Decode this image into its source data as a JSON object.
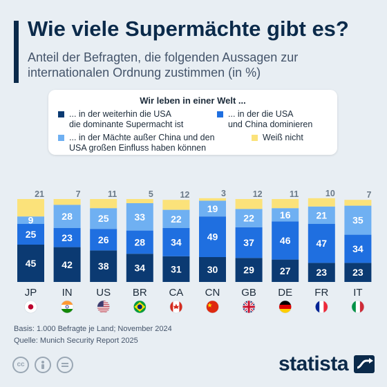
{
  "header": {
    "title": "Wie viele Supermächte gibt es?",
    "subtitle": "Anteil der Befragten, die folgenden Aussagen zur internationalen Ordnung zustimmen (in %)"
  },
  "legend": {
    "title": "Wir leben in einer Welt ...",
    "items": [
      {
        "label": "... in der weiterhin die USA\ndie dominante Supermacht ist",
        "color": "#0b3a72"
      },
      {
        "label": "... in der die USA\nund China dominieren",
        "color": "#1f6fe0"
      },
      {
        "label": "... in der Mächte außer China und den\nUSA großen Einfluss haben können",
        "color": "#6fb0f2"
      },
      {
        "label": "Weiß nicht",
        "color": "#fbe27a"
      }
    ]
  },
  "chart_data": {
    "type": "bar",
    "stacked": true,
    "categories": [
      "JP",
      "IN",
      "US",
      "BR",
      "CA",
      "CN",
      "GB",
      "DE",
      "FR",
      "IT"
    ],
    "series": [
      {
        "name": "... in der weiterhin die USA die dominante Supermacht ist",
        "color": "#0b3a72",
        "values": [
          45,
          42,
          38,
          34,
          31,
          30,
          29,
          27,
          23,
          23
        ]
      },
      {
        "name": "... in der die USA und China dominieren",
        "color": "#1f6fe0",
        "values": [
          25,
          23,
          26,
          28,
          34,
          49,
          37,
          46,
          47,
          34
        ]
      },
      {
        "name": "... in der Mächte außer China und den USA großen Einfluss haben können",
        "color": "#6fb0f2",
        "values": [
          9,
          28,
          25,
          33,
          22,
          19,
          22,
          16,
          21,
          35
        ]
      },
      {
        "name": "Weiß nicht",
        "color": "#fbe27a",
        "values": [
          21,
          7,
          11,
          5,
          12,
          3,
          12,
          11,
          10,
          7
        ]
      }
    ],
    "ylim": [
      0,
      100
    ],
    "grid": false,
    "legend_position": "top"
  },
  "flags": [
    "flag-japan-icon",
    "flag-india-icon",
    "flag-usa-icon",
    "flag-brazil-icon",
    "flag-canada-icon",
    "flag-china-icon",
    "flag-uk-icon",
    "flag-germany-icon",
    "flag-france-icon",
    "flag-italy-icon"
  ],
  "footer": {
    "basis": "Basis: 1.000 Befragte je Land; November 2024",
    "source": "Quelle: Munich Security Report 2025",
    "logo": "statista"
  }
}
